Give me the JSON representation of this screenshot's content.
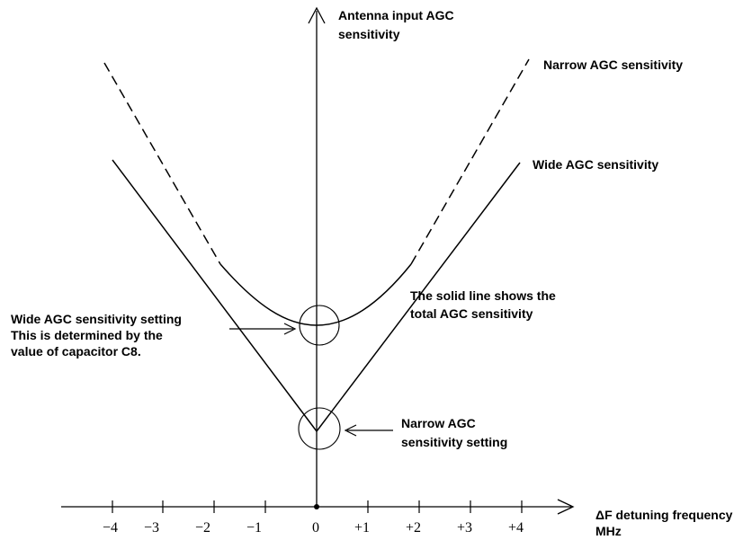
{
  "y_axis_label": [
    "Antenna input AGC",
    "sensitivity"
  ],
  "x_axis_label": [
    "ΔF detuning frequency",
    "MHz"
  ],
  "tick_labels": [
    "−4",
    "−3",
    "−2",
    "−1",
    "0",
    "+1",
    "+2",
    "+3",
    "+4"
  ],
  "curve_labels": {
    "narrow": "Narrow AGC sensitivity",
    "wide": "Wide AGC sensitivity"
  },
  "annotations": {
    "wide_setting": [
      "Wide AGC sensitivity setting",
      "This is determined by the",
      "value of capacitor C8."
    ],
    "total": [
      "The solid line shows the",
      "total AGC sensitivity"
    ],
    "narrow_setting": [
      "Narrow AGC",
      "sensitivity setting"
    ]
  },
  "colors": {
    "ink": "#000000",
    "background": "#ffffff"
  },
  "line_styles": {
    "narrow_curve": "dashed",
    "wide_curve": "solid",
    "total_curve": "solid"
  }
}
